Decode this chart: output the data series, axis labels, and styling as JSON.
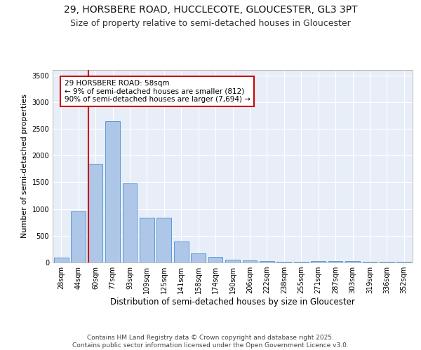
{
  "title1": "29, HORSBERE ROAD, HUCCLECOTE, GLOUCESTER, GL3 3PT",
  "title2": "Size of property relative to semi-detached houses in Gloucester",
  "xlabel": "Distribution of semi-detached houses by size in Gloucester",
  "ylabel": "Number of semi-detached properties",
  "categories": [
    "28sqm",
    "44sqm",
    "60sqm",
    "77sqm",
    "93sqm",
    "109sqm",
    "125sqm",
    "141sqm",
    "158sqm",
    "174sqm",
    "190sqm",
    "206sqm",
    "222sqm",
    "238sqm",
    "255sqm",
    "271sqm",
    "287sqm",
    "303sqm",
    "319sqm",
    "336sqm",
    "352sqm"
  ],
  "values": [
    90,
    950,
    1850,
    2650,
    1480,
    840,
    840,
    390,
    170,
    110,
    50,
    35,
    30,
    10,
    10,
    25,
    20,
    20,
    10,
    10,
    10
  ],
  "bar_color": "#aec6e8",
  "bar_edge_color": "#5b9bd5",
  "vline_color": "#cc0000",
  "vline_x": 2,
  "annotation_title": "29 HORSBERE ROAD: 58sqm",
  "annotation_line2": "← 9% of semi-detached houses are smaller (812)",
  "annotation_line3": "90% of semi-detached houses are larger (7,694) →",
  "annotation_box_color": "#cc0000",
  "ylim": [
    0,
    3600
  ],
  "yticks": [
    0,
    500,
    1000,
    1500,
    2000,
    2500,
    3000,
    3500
  ],
  "footer1": "Contains HM Land Registry data © Crown copyright and database right 2025.",
  "footer2": "Contains public sector information licensed under the Open Government Licence v3.0.",
  "plot_background": "#e8eef8",
  "title1_fontsize": 10,
  "title2_fontsize": 9,
  "xlabel_fontsize": 8.5,
  "ylabel_fontsize": 8,
  "tick_fontsize": 7,
  "annotation_fontsize": 7.5,
  "footer_fontsize": 6.5
}
